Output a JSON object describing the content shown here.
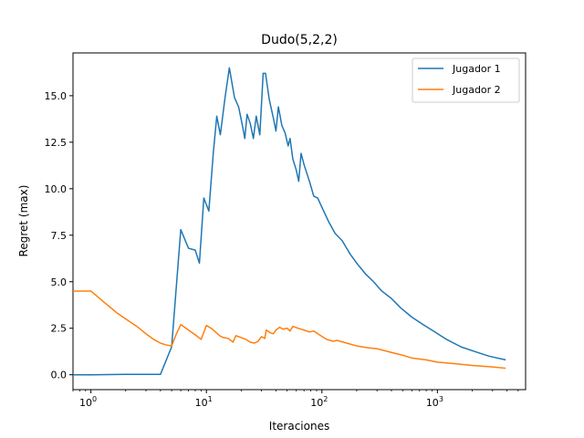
{
  "chart_data": {
    "type": "line",
    "title": "Dudo(5,2,2)",
    "xlabel": "Iteraciones",
    "ylabel": "Regret (max)",
    "xscale": "log",
    "xlim": [
      0.7,
      5800
    ],
    "ylim": [
      -0.8,
      17.3
    ],
    "grid": false,
    "legend_position": "top-right",
    "x_ticks": [
      {
        "value": 1,
        "base": "10",
        "exp": "0"
      },
      {
        "value": 10,
        "base": "10",
        "exp": "1"
      },
      {
        "value": 100,
        "base": "10",
        "exp": "2"
      },
      {
        "value": 1000,
        "base": "10",
        "exp": "3"
      }
    ],
    "y_ticks": [
      {
        "value": 0,
        "label": "0.0"
      },
      {
        "value": 2.5,
        "label": "2.5"
      },
      {
        "value": 5,
        "label": "5.0"
      },
      {
        "value": 7.5,
        "label": "7.5"
      },
      {
        "value": 10,
        "label": "10.0"
      },
      {
        "value": 12.5,
        "label": "12.5"
      },
      {
        "value": 15,
        "label": "15.0"
      }
    ],
    "series": [
      {
        "name": "Jugador 1",
        "color": "#1f77b4",
        "points": [
          [
            0.7,
            0.0
          ],
          [
            1,
            0.0
          ],
          [
            2,
            0.02
          ],
          [
            3,
            0.02
          ],
          [
            4,
            0.02
          ],
          [
            5,
            1.5
          ],
          [
            6,
            7.8
          ],
          [
            7,
            6.8
          ],
          [
            8,
            6.7
          ],
          [
            8.7,
            6.0
          ],
          [
            9.5,
            9.5
          ],
          [
            10.5,
            8.8
          ],
          [
            11.5,
            12.0
          ],
          [
            12.3,
            13.9
          ],
          [
            13.2,
            12.9
          ],
          [
            14.5,
            14.9
          ],
          [
            15.8,
            16.5
          ],
          [
            17.5,
            14.9
          ],
          [
            19,
            14.4
          ],
          [
            20.5,
            13.4
          ],
          [
            21.5,
            12.7
          ],
          [
            22.5,
            14.0
          ],
          [
            24,
            13.5
          ],
          [
            25.5,
            12.7
          ],
          [
            27,
            13.9
          ],
          [
            29,
            12.9
          ],
          [
            31,
            16.2
          ],
          [
            32.5,
            16.2
          ],
          [
            35,
            14.8
          ],
          [
            38,
            13.8
          ],
          [
            40,
            13.1
          ],
          [
            42,
            14.4
          ],
          [
            45,
            13.4
          ],
          [
            48,
            13.0
          ],
          [
            51,
            12.3
          ],
          [
            53,
            12.7
          ],
          [
            56,
            11.6
          ],
          [
            60,
            11.0
          ],
          [
            63,
            10.4
          ],
          [
            66,
            11.9
          ],
          [
            70,
            11.3
          ],
          [
            78,
            10.4
          ],
          [
            85,
            9.6
          ],
          [
            92,
            9.5
          ],
          [
            100,
            9.0
          ],
          [
            115,
            8.2
          ],
          [
            130,
            7.6
          ],
          [
            150,
            7.2
          ],
          [
            175,
            6.5
          ],
          [
            200,
            6.0
          ],
          [
            240,
            5.4
          ],
          [
            280,
            5.0
          ],
          [
            330,
            4.5
          ],
          [
            400,
            4.1
          ],
          [
            480,
            3.6
          ],
          [
            600,
            3.1
          ],
          [
            750,
            2.7
          ],
          [
            950,
            2.3
          ],
          [
            1200,
            1.9
          ],
          [
            1600,
            1.5
          ],
          [
            2100,
            1.25
          ],
          [
            2800,
            1.0
          ],
          [
            3900,
            0.8
          ]
        ]
      },
      {
        "name": "Jugador 2",
        "color": "#ff7f0e",
        "points": [
          [
            0.7,
            4.5
          ],
          [
            1,
            4.5
          ],
          [
            1.3,
            3.9
          ],
          [
            1.7,
            3.3
          ],
          [
            2,
            3.0
          ],
          [
            2.5,
            2.6
          ],
          [
            3,
            2.2
          ],
          [
            3.5,
            1.9
          ],
          [
            4,
            1.7
          ],
          [
            4.5,
            1.6
          ],
          [
            5,
            1.55
          ],
          [
            5.5,
            2.2
          ],
          [
            6,
            2.7
          ],
          [
            7,
            2.4
          ],
          [
            8,
            2.15
          ],
          [
            9,
            1.9
          ],
          [
            10,
            2.65
          ],
          [
            11,
            2.5
          ],
          [
            12,
            2.3
          ],
          [
            13,
            2.1
          ],
          [
            14,
            2.0
          ],
          [
            15.5,
            1.95
          ],
          [
            17,
            1.75
          ],
          [
            18,
            2.1
          ],
          [
            20,
            2.0
          ],
          [
            22,
            1.9
          ],
          [
            24,
            1.75
          ],
          [
            26,
            1.7
          ],
          [
            28,
            1.8
          ],
          [
            30,
            2.05
          ],
          [
            32,
            1.95
          ],
          [
            33,
            2.4
          ],
          [
            36,
            2.25
          ],
          [
            38,
            2.2
          ],
          [
            40,
            2.4
          ],
          [
            43,
            2.55
          ],
          [
            46,
            2.45
          ],
          [
            50,
            2.5
          ],
          [
            53,
            2.35
          ],
          [
            56,
            2.6
          ],
          [
            62,
            2.5
          ],
          [
            70,
            2.4
          ],
          [
            78,
            2.3
          ],
          [
            85,
            2.35
          ],
          [
            95,
            2.15
          ],
          [
            110,
            1.9
          ],
          [
            125,
            1.8
          ],
          [
            135,
            1.85
          ],
          [
            160,
            1.72
          ],
          [
            200,
            1.55
          ],
          [
            250,
            1.45
          ],
          [
            300,
            1.4
          ],
          [
            400,
            1.2
          ],
          [
            500,
            1.05
          ],
          [
            600,
            0.9
          ],
          [
            800,
            0.8
          ],
          [
            1000,
            0.68
          ],
          [
            1500,
            0.58
          ],
          [
            2000,
            0.5
          ],
          [
            3000,
            0.42
          ],
          [
            3900,
            0.35
          ]
        ]
      }
    ]
  }
}
